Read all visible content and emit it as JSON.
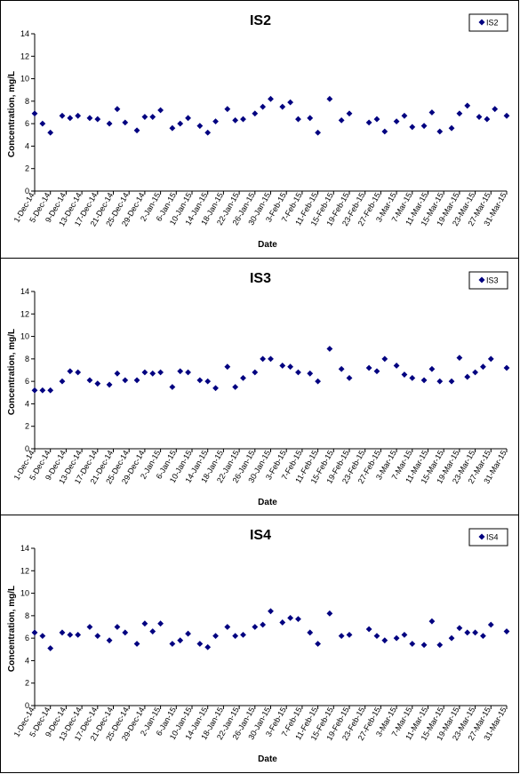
{
  "style": {
    "marker_color": "#000080",
    "axis_color": "#000000",
    "border_color": "#000000"
  },
  "chart_data": [
    {
      "type": "scatter",
      "title": "IS2",
      "xlabel": "Date",
      "ylabel": "Concentration, mg/L",
      "ylim": [
        0,
        14
      ],
      "yticks": [
        0,
        2,
        4,
        6,
        8,
        10,
        12,
        14
      ],
      "xlim": [
        "2014-12-01",
        "2015-03-31"
      ],
      "xtick_labels": [
        "1-Dec-14",
        "5-Dec-14",
        "9-Dec-14",
        "13-Dec-14",
        "17-Dec-14",
        "21-Dec-14",
        "25-Dec-14",
        "29-Dec-14",
        "2-Jan-15",
        "6-Jan-15",
        "10-Jan-15",
        "14-Jan-15",
        "18-Jan-15",
        "22-Jan-15",
        "26-Jan-15",
        "30-Jan-15",
        "3-Feb-15",
        "7-Feb-15",
        "11-Feb-15",
        "15-Feb-15",
        "19-Feb-15",
        "23-Feb-15",
        "27-Feb-15",
        "3-Mar-15",
        "7-Mar-15",
        "11-Mar-15",
        "15-Mar-15",
        "19-Mar-15",
        "23-Mar-15",
        "27-Mar-15",
        "31-Mar-15"
      ],
      "legend": "top-right",
      "grid": false,
      "series": [
        {
          "name": "IS2",
          "points": [
            {
              "x": "2014-12-01",
              "y": 6.9
            },
            {
              "x": "2014-12-03",
              "y": 6.0
            },
            {
              "x": "2014-12-05",
              "y": 5.2
            },
            {
              "x": "2014-12-08",
              "y": 6.7
            },
            {
              "x": "2014-12-10",
              "y": 6.5
            },
            {
              "x": "2014-12-12",
              "y": 6.7
            },
            {
              "x": "2014-12-15",
              "y": 6.5
            },
            {
              "x": "2014-12-17",
              "y": 6.4
            },
            {
              "x": "2014-12-20",
              "y": 6.0
            },
            {
              "x": "2014-12-22",
              "y": 7.3
            },
            {
              "x": "2014-12-24",
              "y": 6.1
            },
            {
              "x": "2014-12-27",
              "y": 5.4
            },
            {
              "x": "2014-12-29",
              "y": 6.6
            },
            {
              "x": "2014-12-31",
              "y": 6.6
            },
            {
              "x": "2015-01-02",
              "y": 7.2
            },
            {
              "x": "2015-01-05",
              "y": 5.6
            },
            {
              "x": "2015-01-07",
              "y": 6.0
            },
            {
              "x": "2015-01-09",
              "y": 6.5
            },
            {
              "x": "2015-01-12",
              "y": 5.8
            },
            {
              "x": "2015-01-14",
              "y": 5.2
            },
            {
              "x": "2015-01-16",
              "y": 6.2
            },
            {
              "x": "2015-01-19",
              "y": 7.3
            },
            {
              "x": "2015-01-21",
              "y": 6.3
            },
            {
              "x": "2015-01-23",
              "y": 6.4
            },
            {
              "x": "2015-01-26",
              "y": 6.9
            },
            {
              "x": "2015-01-28",
              "y": 7.5
            },
            {
              "x": "2015-01-30",
              "y": 8.2
            },
            {
              "x": "2015-02-02",
              "y": 7.5
            },
            {
              "x": "2015-02-04",
              "y": 7.9
            },
            {
              "x": "2015-02-06",
              "y": 6.4
            },
            {
              "x": "2015-02-09",
              "y": 6.5
            },
            {
              "x": "2015-02-11",
              "y": 5.2
            },
            {
              "x": "2015-02-14",
              "y": 8.2
            },
            {
              "x": "2015-02-17",
              "y": 6.3
            },
            {
              "x": "2015-02-19",
              "y": 6.9
            },
            {
              "x": "2015-02-24",
              "y": 6.1
            },
            {
              "x": "2015-02-26",
              "y": 6.4
            },
            {
              "x": "2015-02-28",
              "y": 5.3
            },
            {
              "x": "2015-03-03",
              "y": 6.2
            },
            {
              "x": "2015-03-05",
              "y": 6.7
            },
            {
              "x": "2015-03-07",
              "y": 5.7
            },
            {
              "x": "2015-03-10",
              "y": 5.8
            },
            {
              "x": "2015-03-12",
              "y": 7.0
            },
            {
              "x": "2015-03-14",
              "y": 5.3
            },
            {
              "x": "2015-03-17",
              "y": 5.6
            },
            {
              "x": "2015-03-19",
              "y": 6.9
            },
            {
              "x": "2015-03-21",
              "y": 7.6
            },
            {
              "x": "2015-03-24",
              "y": 6.6
            },
            {
              "x": "2015-03-26",
              "y": 6.4
            },
            {
              "x": "2015-03-28",
              "y": 7.3
            },
            {
              "x": "2015-03-31",
              "y": 6.7
            }
          ]
        }
      ]
    },
    {
      "type": "scatter",
      "title": "IS3",
      "xlabel": "Date",
      "ylabel": "Concentration, mg/L",
      "ylim": [
        0,
        14
      ],
      "yticks": [
        0,
        2,
        4,
        6,
        8,
        10,
        12,
        14
      ],
      "xlim": [
        "2014-12-01",
        "2015-03-31"
      ],
      "xtick_labels": [
        "1-Dec-14",
        "5-Dec-14",
        "9-Dec-14",
        "13-Dec-14",
        "17-Dec-14",
        "21-Dec-14",
        "25-Dec-14",
        "29-Dec-14",
        "2-Jan-15",
        "6-Jan-15",
        "10-Jan-15",
        "14-Jan-15",
        "18-Jan-15",
        "22-Jan-15",
        "26-Jan-15",
        "30-Jan-15",
        "3-Feb-15",
        "7-Feb-15",
        "11-Feb-15",
        "15-Feb-15",
        "19-Feb-15",
        "23-Feb-15",
        "27-Feb-15",
        "3-Mar-15",
        "7-Mar-15",
        "11-Mar-15",
        "15-Mar-15",
        "19-Mar-15",
        "23-Mar-15",
        "27-Mar-15",
        "31-Mar-15"
      ],
      "legend": "top-right",
      "grid": false,
      "series": [
        {
          "name": "IS3",
          "points": [
            {
              "x": "2014-12-01",
              "y": 5.2
            },
            {
              "x": "2014-12-03",
              "y": 5.2
            },
            {
              "x": "2014-12-05",
              "y": 5.2
            },
            {
              "x": "2014-12-08",
              "y": 6.0
            },
            {
              "x": "2014-12-10",
              "y": 6.9
            },
            {
              "x": "2014-12-12",
              "y": 6.8
            },
            {
              "x": "2014-12-15",
              "y": 6.1
            },
            {
              "x": "2014-12-17",
              "y": 5.8
            },
            {
              "x": "2014-12-20",
              "y": 5.7
            },
            {
              "x": "2014-12-22",
              "y": 6.7
            },
            {
              "x": "2014-12-24",
              "y": 6.1
            },
            {
              "x": "2014-12-27",
              "y": 6.1
            },
            {
              "x": "2014-12-29",
              "y": 6.8
            },
            {
              "x": "2014-12-31",
              "y": 6.7
            },
            {
              "x": "2015-01-02",
              "y": 6.8
            },
            {
              "x": "2015-01-05",
              "y": 5.5
            },
            {
              "x": "2015-01-07",
              "y": 6.9
            },
            {
              "x": "2015-01-09",
              "y": 6.8
            },
            {
              "x": "2015-01-12",
              "y": 6.1
            },
            {
              "x": "2015-01-14",
              "y": 6.0
            },
            {
              "x": "2015-01-16",
              "y": 5.4
            },
            {
              "x": "2015-01-19",
              "y": 7.3
            },
            {
              "x": "2015-01-21",
              "y": 5.5
            },
            {
              "x": "2015-01-23",
              "y": 6.3
            },
            {
              "x": "2015-01-26",
              "y": 6.8
            },
            {
              "x": "2015-01-28",
              "y": 8.0
            },
            {
              "x": "2015-01-30",
              "y": 8.0
            },
            {
              "x": "2015-02-02",
              "y": 7.4
            },
            {
              "x": "2015-02-04",
              "y": 7.3
            },
            {
              "x": "2015-02-06",
              "y": 6.8
            },
            {
              "x": "2015-02-09",
              "y": 6.7
            },
            {
              "x": "2015-02-11",
              "y": 6.0
            },
            {
              "x": "2015-02-14",
              "y": 8.9
            },
            {
              "x": "2015-02-17",
              "y": 7.1
            },
            {
              "x": "2015-02-19",
              "y": 6.3
            },
            {
              "x": "2015-02-24",
              "y": 7.2
            },
            {
              "x": "2015-02-26",
              "y": 6.9
            },
            {
              "x": "2015-02-28",
              "y": 8.0
            },
            {
              "x": "2015-03-03",
              "y": 7.4
            },
            {
              "x": "2015-03-05",
              "y": 6.6
            },
            {
              "x": "2015-03-07",
              "y": 6.3
            },
            {
              "x": "2015-03-10",
              "y": 6.1
            },
            {
              "x": "2015-03-12",
              "y": 7.1
            },
            {
              "x": "2015-03-14",
              "y": 6.0
            },
            {
              "x": "2015-03-17",
              "y": 6.0
            },
            {
              "x": "2015-03-19",
              "y": 8.1
            },
            {
              "x": "2015-03-21",
              "y": 6.4
            },
            {
              "x": "2015-03-23",
              "y": 6.8
            },
            {
              "x": "2015-03-25",
              "y": 7.3
            },
            {
              "x": "2015-03-27",
              "y": 8.0
            },
            {
              "x": "2015-03-31",
              "y": 7.2
            }
          ]
        }
      ]
    },
    {
      "type": "scatter",
      "title": "IS4",
      "xlabel": "Date",
      "ylabel": "Concentration, mg/L",
      "ylim": [
        0,
        14
      ],
      "yticks": [
        0,
        2,
        4,
        6,
        8,
        10,
        12,
        14
      ],
      "xlim": [
        "2014-12-01",
        "2015-03-31"
      ],
      "xtick_labels": [
        "1-Dec-14",
        "5-Dec-14",
        "9-Dec-14",
        "13-Dec-14",
        "17-Dec-14",
        "21-Dec-14",
        "25-Dec-14",
        "29-Dec-14",
        "2-Jan-15",
        "6-Jan-15",
        "10-Jan-15",
        "14-Jan-15",
        "18-Jan-15",
        "22-Jan-15",
        "26-Jan-15",
        "30-Jan-15",
        "3-Feb-15",
        "7-Feb-15",
        "11-Feb-15",
        "15-Feb-15",
        "19-Feb-15",
        "23-Feb-15",
        "27-Feb-15",
        "3-Mar-15",
        "7-Mar-15",
        "11-Mar-15",
        "15-Mar-15",
        "19-Mar-15",
        "23-Mar-15",
        "27-Mar-15",
        "31-Mar-15"
      ],
      "legend": "top-right",
      "grid": false,
      "series": [
        {
          "name": "IS4",
          "points": [
            {
              "x": "2014-12-01",
              "y": 6.5
            },
            {
              "x": "2014-12-03",
              "y": 6.2
            },
            {
              "x": "2014-12-05",
              "y": 5.1
            },
            {
              "x": "2014-12-08",
              "y": 6.5
            },
            {
              "x": "2014-12-10",
              "y": 6.3
            },
            {
              "x": "2014-12-12",
              "y": 6.3
            },
            {
              "x": "2014-12-15",
              "y": 7.0
            },
            {
              "x": "2014-12-17",
              "y": 6.2
            },
            {
              "x": "2014-12-20",
              "y": 5.8
            },
            {
              "x": "2014-12-22",
              "y": 7.0
            },
            {
              "x": "2014-12-24",
              "y": 6.5
            },
            {
              "x": "2014-12-27",
              "y": 5.5
            },
            {
              "x": "2014-12-29",
              "y": 7.3
            },
            {
              "x": "2014-12-31",
              "y": 6.6
            },
            {
              "x": "2015-01-02",
              "y": 7.3
            },
            {
              "x": "2015-01-05",
              "y": 5.5
            },
            {
              "x": "2015-01-07",
              "y": 5.8
            },
            {
              "x": "2015-01-09",
              "y": 6.4
            },
            {
              "x": "2015-01-12",
              "y": 5.5
            },
            {
              "x": "2015-01-14",
              "y": 5.2
            },
            {
              "x": "2015-01-16",
              "y": 6.2
            },
            {
              "x": "2015-01-19",
              "y": 7.0
            },
            {
              "x": "2015-01-21",
              "y": 6.2
            },
            {
              "x": "2015-01-23",
              "y": 6.3
            },
            {
              "x": "2015-01-26",
              "y": 7.0
            },
            {
              "x": "2015-01-28",
              "y": 7.2
            },
            {
              "x": "2015-01-30",
              "y": 8.4
            },
            {
              "x": "2015-02-02",
              "y": 7.4
            },
            {
              "x": "2015-02-04",
              "y": 7.8
            },
            {
              "x": "2015-02-06",
              "y": 7.7
            },
            {
              "x": "2015-02-09",
              "y": 6.5
            },
            {
              "x": "2015-02-11",
              "y": 5.5
            },
            {
              "x": "2015-02-14",
              "y": 8.2
            },
            {
              "x": "2015-02-17",
              "y": 6.2
            },
            {
              "x": "2015-02-19",
              "y": 6.3
            },
            {
              "x": "2015-02-24",
              "y": 6.8
            },
            {
              "x": "2015-02-26",
              "y": 6.2
            },
            {
              "x": "2015-02-28",
              "y": 5.8
            },
            {
              "x": "2015-03-03",
              "y": 6.0
            },
            {
              "x": "2015-03-05",
              "y": 6.3
            },
            {
              "x": "2015-03-07",
              "y": 5.5
            },
            {
              "x": "2015-03-10",
              "y": 5.4
            },
            {
              "x": "2015-03-12",
              "y": 7.5
            },
            {
              "x": "2015-03-14",
              "y": 5.4
            },
            {
              "x": "2015-03-17",
              "y": 6.0
            },
            {
              "x": "2015-03-19",
              "y": 6.9
            },
            {
              "x": "2015-03-21",
              "y": 6.5
            },
            {
              "x": "2015-03-23",
              "y": 6.5
            },
            {
              "x": "2015-03-25",
              "y": 6.2
            },
            {
              "x": "2015-03-27",
              "y": 7.2
            },
            {
              "x": "2015-03-31",
              "y": 6.6
            }
          ]
        }
      ]
    }
  ]
}
